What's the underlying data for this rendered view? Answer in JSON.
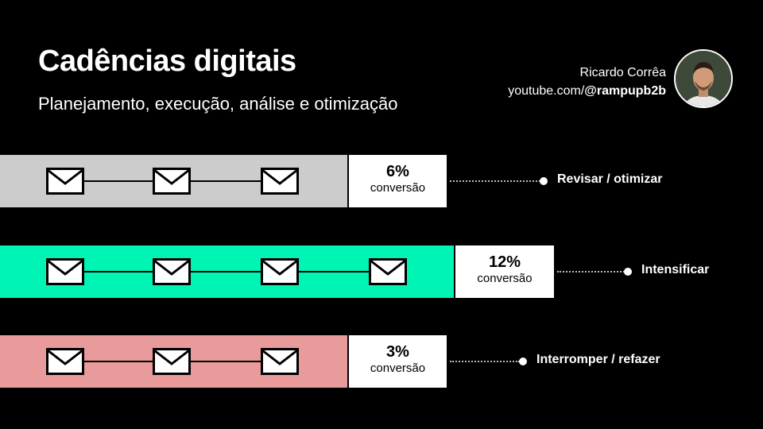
{
  "header": {
    "title": "Cadências digitais",
    "subtitle": "Planejamento, execução, análise e otimização",
    "author_name": "Ricardo Corrêa",
    "channel_prefix": "youtube.com/",
    "channel_handle": "@rampupb2b"
  },
  "rows": [
    {
      "bar_color": "#cccccc",
      "emails": 3,
      "percent": "6%",
      "conversion_label": "conversão",
      "action": "Revisar / otimizar"
    },
    {
      "bar_color": "#00f5b4",
      "emails": 4,
      "percent": "12%",
      "conversion_label": "conversão",
      "action": "Intensificar"
    },
    {
      "bar_color": "#e99a9a",
      "emails": 3,
      "percent": "3%",
      "conversion_label": "conversão",
      "action": "Interromper / refazer"
    }
  ]
}
